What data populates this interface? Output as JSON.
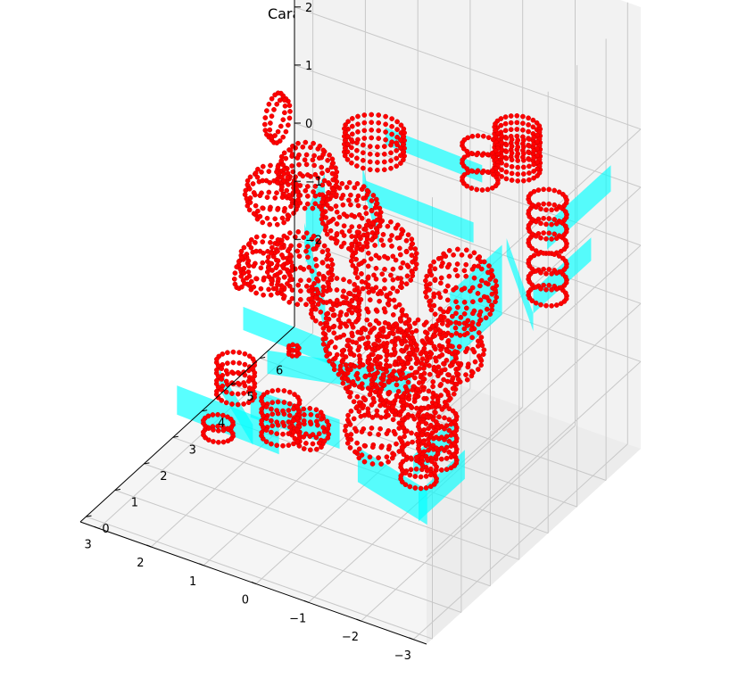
{
  "chart_data": {
    "type": "scatter",
    "projection": "3d",
    "title": "Caras (azul) y vértices (rojo)",
    "xlabel": "",
    "ylabel": "",
    "zlabel": "",
    "xlim": [
      -3,
      3
    ],
    "ylim": [
      0,
      7
    ],
    "zlim": [
      -2.3,
      2.3
    ],
    "x_ticks": [
      -3,
      -2,
      -1,
      0,
      1,
      2,
      3
    ],
    "y_ticks": [
      0,
      1,
      2,
      3,
      4,
      5,
      6
    ],
    "z_ticks": [
      -2,
      -1,
      0,
      1,
      2
    ],
    "x_tick_labels": [
      "−3",
      "−2",
      "−1",
      "0",
      "1",
      "2",
      "3"
    ],
    "y_tick_labels": [
      "0",
      "1",
      "2",
      "3",
      "4",
      "5",
      "6"
    ],
    "z_tick_labels": [
      "−2",
      "−1",
      "0",
      "1",
      "2"
    ],
    "grid": true,
    "legend": "none",
    "colors": {
      "faces": "#00ffff",
      "vertices": "#ff0000",
      "vertex_edge": "#d00000",
      "pane_back": "#f2f2f2",
      "pane_side": "#ececec",
      "pane_floor": "#f5f5f5",
      "grid": "#c8c8c8"
    }
  }
}
